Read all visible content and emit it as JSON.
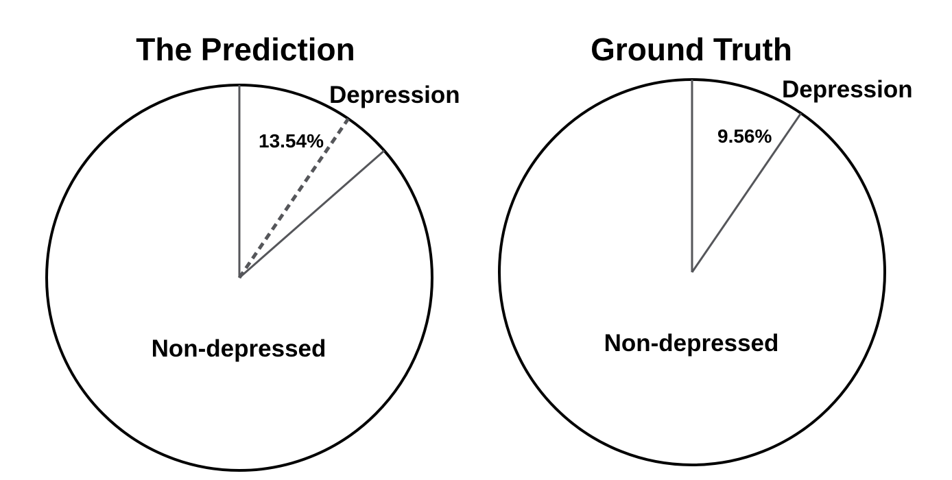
{
  "chart_data": [
    {
      "type": "pie",
      "title": "The Prediction",
      "slices": [
        {
          "label": "Depression",
          "value": 13.54
        },
        {
          "label": "Non-depressed",
          "value": 86.46
        }
      ],
      "percent_label": "13.54%",
      "comparison_value": 9.56,
      "comparison_line_style": "dashed"
    },
    {
      "type": "pie",
      "title": "Ground Truth",
      "slices": [
        {
          "label": "Depression",
          "value": 9.56
        },
        {
          "label": "Non-depressed",
          "value": 90.44
        }
      ],
      "percent_label": "9.56%"
    }
  ]
}
